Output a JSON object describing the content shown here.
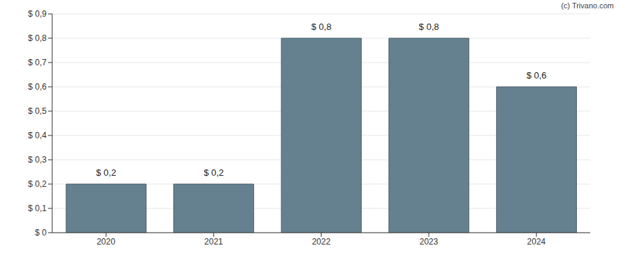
{
  "chart_data": {
    "type": "bar",
    "categories": [
      "2020",
      "2021",
      "2022",
      "2023",
      "2024"
    ],
    "values": [
      0.2,
      0.2,
      0.8,
      0.8,
      0.6
    ],
    "value_labels": [
      "$ 0,2",
      "$ 0,2",
      "$ 0,8",
      "$ 0,8",
      "$ 0,6"
    ],
    "data_labels": true,
    "color": "#65808f",
    "ylim": [
      0,
      0.9
    ],
    "yticks": [
      {
        "value": 0,
        "label": "$ 0"
      },
      {
        "value": 0.1,
        "label": "$ 0,1"
      },
      {
        "value": 0.2,
        "label": "$ 0,2"
      },
      {
        "value": 0.3,
        "label": "$ 0,3"
      },
      {
        "value": 0.4,
        "label": "$ 0,4"
      },
      {
        "value": 0.5,
        "label": "$ 0,5"
      },
      {
        "value": 0.6,
        "label": "$ 0,6"
      },
      {
        "value": 0.7,
        "label": "$ 0,7"
      },
      {
        "value": 0.8,
        "label": "$ 0,8"
      },
      {
        "value": 0.9,
        "label": "$ 0,9"
      }
    ],
    "grid": true,
    "annotations": [
      "(c) Trivano.com"
    ]
  }
}
